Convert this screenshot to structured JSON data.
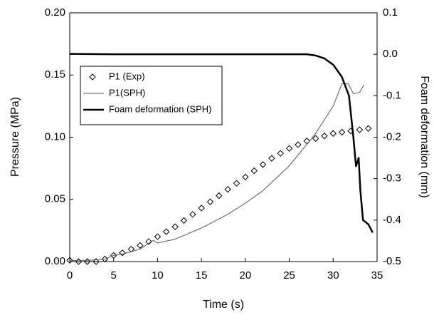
{
  "chart_data": {
    "type": "line",
    "xlabel": "Time (s)",
    "ylabel": "Pressure (MPa)",
    "y2label": "Foam deformation (mm)",
    "xlim": [
      0,
      35
    ],
    "xticks": [
      0,
      5,
      10,
      15,
      20,
      25,
      30,
      35
    ],
    "ylim": [
      0,
      0.2
    ],
    "yticks": [
      {
        "value": 0,
        "label": "0.00"
      },
      0.05,
      {
        "value": 0.1,
        "label": "0.10"
      },
      0.15,
      {
        "value": 0.2,
        "label": "0.20"
      }
    ],
    "y2lim": [
      -0.5,
      0.1
    ],
    "y2ticks": [
      -0.5,
      -0.4,
      -0.3,
      -0.2,
      -0.1,
      {
        "value": 0,
        "label": "0.0"
      },
      0.1
    ],
    "legend": "upper left",
    "series": [
      {
        "name": "P1 (Exp)",
        "color": "#000000",
        "marker": "diamond",
        "x": [
          0,
          1,
          2,
          3,
          4,
          5,
          6,
          7,
          8,
          9,
          10,
          11,
          12,
          13,
          14,
          15,
          16,
          17,
          18,
          19,
          20,
          21,
          22,
          23,
          24,
          25,
          26,
          27,
          28,
          29,
          30,
          31,
          32,
          33,
          34
        ],
        "values": [
          0.001,
          0,
          0,
          0,
          0.002,
          0.005,
          0.007,
          0.01,
          0.013,
          0.016,
          0.02,
          0.024,
          0.028,
          0.033,
          0.038,
          0.043,
          0.048,
          0.053,
          0.058,
          0.063,
          0.068,
          0.073,
          0.078,
          0.083,
          0.087,
          0.091,
          0.094,
          0.097,
          0.099,
          0.101,
          0.103,
          0.104,
          0.105,
          0.106,
          0.107
        ]
      },
      {
        "name": "P1(SPH)",
        "color": "#555555",
        "line_width": 1,
        "x": [
          0,
          2,
          4,
          5,
          6,
          8,
          9.5,
          10,
          12,
          15,
          18,
          20,
          22,
          25,
          28,
          30,
          31,
          31.7,
          32.3,
          33,
          33.5
        ],
        "values": [
          0.001,
          0.001,
          0.002,
          0.005,
          0.006,
          0.01,
          0.017,
          0.015,
          0.018,
          0.027,
          0.038,
          0.047,
          0.057,
          0.077,
          0.103,
          0.125,
          0.143,
          0.143,
          0.135,
          0.136,
          0.142
        ]
      },
      {
        "name": "Foam deformation (SPH)",
        "color": "#000000",
        "line_width": 2.5,
        "axis": "y2",
        "x": [
          0,
          5,
          10,
          15,
          20,
          25,
          27,
          28,
          29,
          30,
          31,
          31.8,
          32.3,
          32.6,
          32.9,
          33.1,
          33.4,
          34,
          34.5
        ],
        "values": [
          0.001,
          0,
          0,
          0,
          0,
          0,
          0,
          -0.003,
          -0.01,
          -0.025,
          -0.055,
          -0.1,
          -0.2,
          -0.27,
          -0.25,
          -0.33,
          -0.4,
          -0.41,
          -0.43
        ]
      }
    ]
  }
}
